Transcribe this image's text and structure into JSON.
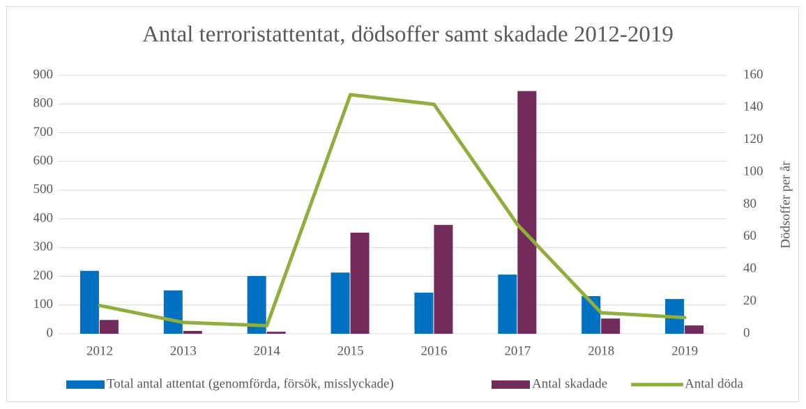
{
  "chart_data": {
    "type": "bar-line",
    "title": "Antal terroristattentat, dödsoffer samt skadade 2012-2019",
    "y2label": "Dödsoffer per år",
    "categories": [
      "2012",
      "2013",
      "2014",
      "2015",
      "2016",
      "2017",
      "2018",
      "2019"
    ],
    "series": [
      {
        "name": "Total antal attentat (genomförda, försök, misslyckade)",
        "type": "bar",
        "color": "#0070c0",
        "values": [
          219,
          151,
          201,
          213,
          143,
          206,
          131,
          121
        ]
      },
      {
        "name": "Antal skadade",
        "type": "bar",
        "color": "#732b5c",
        "values": [
          48,
          10,
          7,
          352,
          379,
          845,
          53,
          29
        ]
      },
      {
        "name": "Antal döda",
        "type": "line",
        "axis": "y2",
        "color": "#8fae3b",
        "values": [
          17.5,
          7,
          5,
          148,
          142,
          67.5,
          13,
          10
        ]
      }
    ],
    "ylim": [
      0,
      900
    ],
    "yticks": [
      0,
      100,
      200,
      300,
      400,
      500,
      600,
      700,
      800,
      900
    ],
    "y2lim": [
      0,
      160
    ],
    "y2ticks": [
      0,
      20,
      40,
      60,
      80,
      100,
      120,
      140,
      160
    ],
    "grid": true,
    "legend": "bottom"
  }
}
